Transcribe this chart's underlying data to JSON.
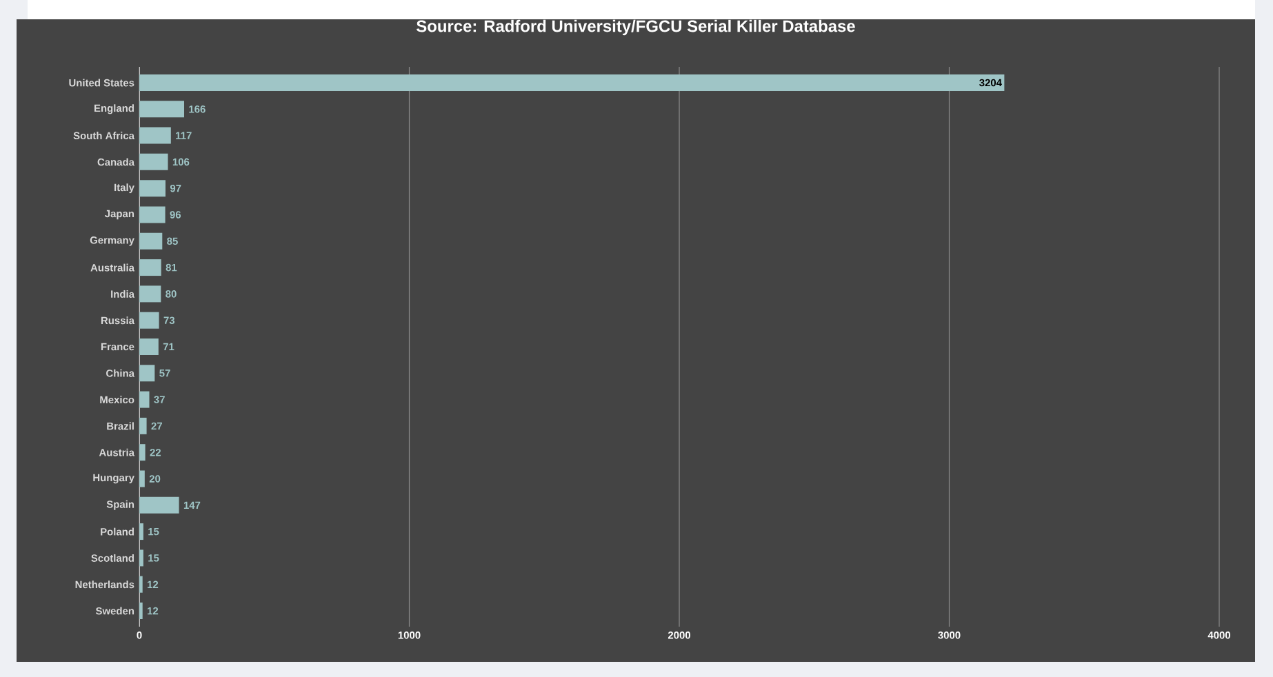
{
  "chart_data": {
    "type": "bar",
    "orientation": "horizontal",
    "title": "Source: Radford University/FGCU Serial Killer Database",
    "categories": [
      "United States",
      "England",
      "South Africa",
      "Canada",
      "Italy",
      "Japan",
      "Germany",
      "Australia",
      "India",
      "Russia",
      "France",
      "China",
      "Mexico",
      "Brazil",
      "Austria",
      "Hungary",
      "Spain",
      "Poland",
      "Scotland",
      "Netherlands",
      "Sweden"
    ],
    "values": [
      3204,
      166,
      117,
      106,
      97,
      96,
      85,
      81,
      80,
      73,
      71,
      57,
      37,
      27,
      22,
      20,
      147,
      15,
      15,
      12,
      12
    ],
    "color": "#9fc5c6",
    "xlim": [
      0,
      4000
    ],
    "xticks": [
      0,
      1000,
      2000,
      3000,
      4000
    ],
    "grid": "x",
    "data_labels": true
  }
}
